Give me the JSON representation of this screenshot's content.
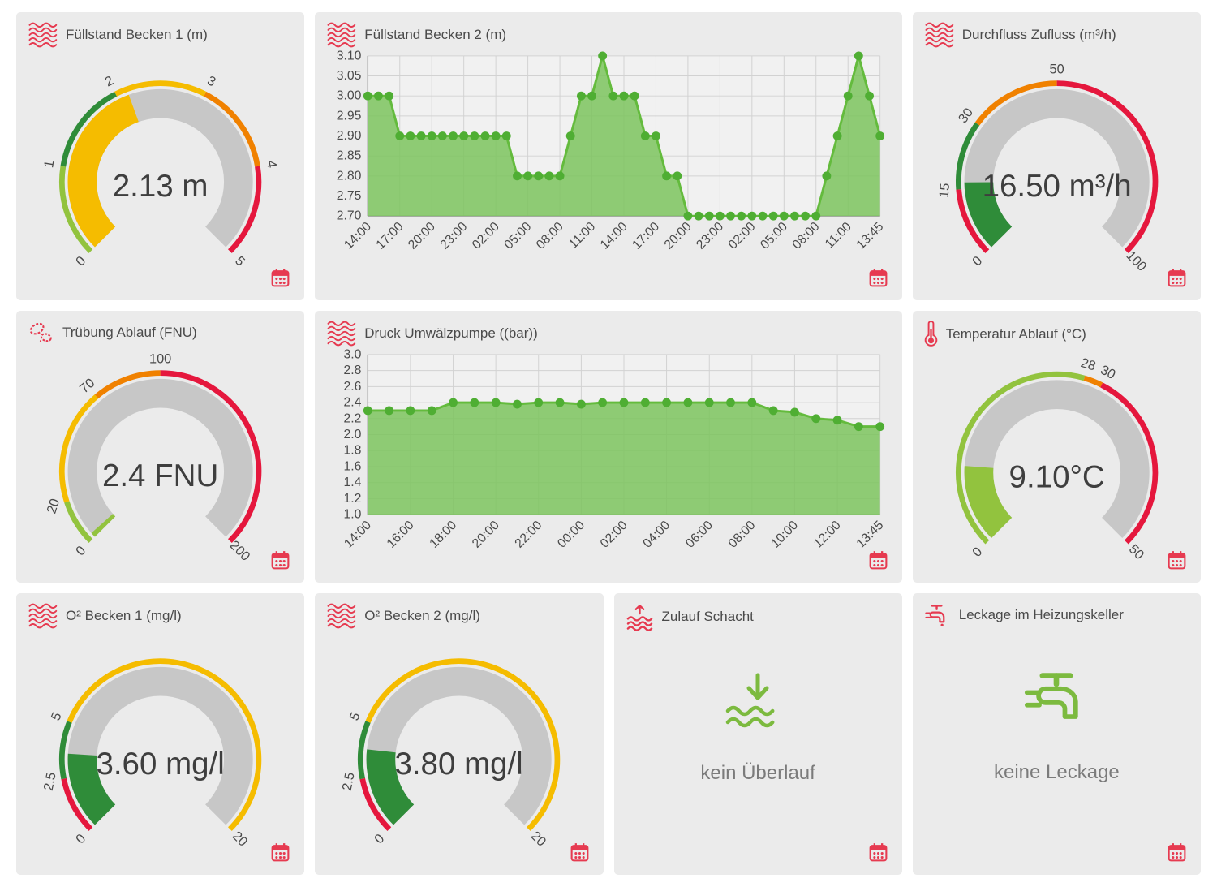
{
  "palette": {
    "page_bg": "#FFFFFF",
    "card_bg": "#EBEBEB",
    "icon_red": "#E63A50",
    "status_green": "#7CBA3F",
    "band_red": "#E5173D",
    "band_orange": "#F08100",
    "band_amber": "#F5BC00",
    "band_green": "#2F8C39",
    "band_light_green": "#92C33E",
    "gauge_track": "#C7C7C7",
    "gauge_value_text": "#3E3E3E",
    "tick_text": "#4A4A4A",
    "chart_fill": "#7CC45E",
    "chart_line": "#64BB3D",
    "chart_marker": "#4FAE33",
    "chart_grid": "#D2D2D2",
    "chart_axis": "#9E9E9E",
    "chart_plot_bg": "#F1F1F1"
  },
  "ui": {
    "calendar_icon": "calendar-icon"
  },
  "cards": [
    {
      "id": "fuellstand-becken-1",
      "type": "gauge",
      "title": "Füllstand Becken 1 (m)",
      "icon": "waves-icon",
      "gauge": {
        "value": 2.13,
        "value_label": "2.13 m",
        "min": 0,
        "max": 5,
        "tick_values": [
          0,
          1,
          2,
          3,
          4,
          5
        ],
        "tick_labels": [
          "0",
          "1",
          "2",
          "3",
          "4",
          "5"
        ],
        "bands": [
          {
            "from": 0,
            "to": 1,
            "color": "#92C33E"
          },
          {
            "from": 1,
            "to": 2,
            "color": "#2F8C39"
          },
          {
            "from": 2,
            "to": 3,
            "color": "#F5BC00"
          },
          {
            "from": 3,
            "to": 4,
            "color": "#F08100"
          },
          {
            "from": 4,
            "to": 5,
            "color": "#E5173D"
          }
        ],
        "fill_color": "#F5BC00"
      }
    },
    {
      "id": "fuellstand-becken-2",
      "type": "chart",
      "title": "Füllstand Becken 2 (m)",
      "icon": "waves-icon",
      "chart_index": 0
    },
    {
      "id": "durchfluss-zufluss",
      "type": "gauge",
      "title": "Durchfluss Zufluss (m³/h)",
      "icon": "waves-icon",
      "gauge": {
        "value": 16.5,
        "value_label": "16.50 m³/h",
        "min": 0,
        "max": 100,
        "tick_values": [
          0,
          15,
          30,
          50,
          100
        ],
        "tick_labels": [
          "0",
          "15",
          "30",
          "50",
          "100"
        ],
        "bands": [
          {
            "from": 0,
            "to": 15,
            "color": "#E5173D"
          },
          {
            "from": 15,
            "to": 30,
            "color": "#2F8C39"
          },
          {
            "from": 30,
            "to": 50,
            "color": "#F08100"
          },
          {
            "from": 50,
            "to": 100,
            "color": "#E5173D"
          }
        ],
        "fill_color": "#2F8C39"
      }
    },
    {
      "id": "truebung-ablauf",
      "type": "gauge",
      "title": "Trübung Ablauf (FNU)",
      "icon": "bacteria-icon",
      "gauge": {
        "value": 2.4,
        "value_label": "2.4 FNU",
        "min": 0,
        "max": 200,
        "tick_values": [
          0,
          20,
          70,
          100,
          200
        ],
        "tick_labels": [
          "0",
          "20",
          "70",
          "100",
          "200"
        ],
        "bands": [
          {
            "from": 0,
            "to": 20,
            "color": "#92C33E"
          },
          {
            "from": 20,
            "to": 70,
            "color": "#F5BC00"
          },
          {
            "from": 70,
            "to": 100,
            "color": "#F08100"
          },
          {
            "from": 100,
            "to": 200,
            "color": "#E5173D"
          }
        ],
        "fill_color": "#92C33E"
      }
    },
    {
      "id": "druck-umwaelzpumpe",
      "type": "chart",
      "title": "Druck Umwälzpumpe ((bar))",
      "icon": "waves-icon",
      "chart_index": 1
    },
    {
      "id": "temperatur-ablauf",
      "type": "gauge",
      "title": "Temperatur Ablauf (°C)",
      "icon": "thermometer-icon",
      "gauge": {
        "value": 9.1,
        "value_label": "9.10°C",
        "min": 0,
        "max": 50,
        "tick_values": [
          0,
          28,
          30,
          50
        ],
        "tick_labels": [
          "0",
          "28",
          "30",
          "50"
        ],
        "bands": [
          {
            "from": 0,
            "to": 28,
            "color": "#92C33E"
          },
          {
            "from": 28,
            "to": 30,
            "color": "#F08100"
          },
          {
            "from": 30,
            "to": 50,
            "color": "#E5173D"
          }
        ],
        "fill_color": "#92C33E"
      }
    },
    {
      "id": "o2-becken-1",
      "type": "gauge",
      "title": "O² Becken 1 (mg/l)",
      "icon": "waves-icon",
      "gauge": {
        "value": 3.6,
        "value_label": "3.60 mg/l",
        "min": 0,
        "max": 20,
        "tick_values": [
          0,
          2.5,
          5,
          20
        ],
        "tick_labels": [
          "0",
          "2.5",
          "5",
          "20"
        ],
        "bands": [
          {
            "from": 0,
            "to": 2.5,
            "color": "#E5173D"
          },
          {
            "from": 2.5,
            "to": 5,
            "color": "#2F8C39"
          },
          {
            "from": 5,
            "to": 20,
            "color": "#F5BC00"
          }
        ],
        "fill_color": "#2F8C39"
      }
    },
    {
      "id": "o2-becken-2",
      "type": "gauge",
      "title": "O² Becken 2 (mg/l)",
      "icon": "waves-icon",
      "gauge": {
        "value": 3.8,
        "value_label": "3.80 mg/l",
        "min": 0,
        "max": 20,
        "tick_values": [
          0,
          2.5,
          5,
          20
        ],
        "tick_labels": [
          "0",
          "2.5",
          "5",
          "20"
        ],
        "bands": [
          {
            "from": 0,
            "to": 2.5,
            "color": "#E5173D"
          },
          {
            "from": 2.5,
            "to": 5,
            "color": "#2F8C39"
          },
          {
            "from": 5,
            "to": 20,
            "color": "#F5BC00"
          }
        ],
        "fill_color": "#2F8C39"
      }
    },
    {
      "id": "zulauf-schacht",
      "type": "status",
      "title": "Zulauf Schacht",
      "icon": "overflow-alert-icon",
      "center_icon": "water-inflow-icon",
      "status_text": "kein Überlauf"
    },
    {
      "id": "leckage-heizungskeller",
      "type": "status",
      "title": "Leckage im Heizungskeller",
      "icon": "leaking-faucet-icon",
      "center_icon": "faucet-icon",
      "status_text": "keine Leckage"
    }
  ],
  "chart_data": [
    {
      "type": "area",
      "title": "Füllstand Becken 2 (m)",
      "ylabel": "m",
      "ylim": [
        2.7,
        3.1
      ],
      "y_step": 0.05,
      "y_tick_labels": [
        "2.70",
        "2.75",
        "2.80",
        "2.85",
        "2.90",
        "2.95",
        "3.00",
        "3.05",
        "3.10"
      ],
      "x_tick_labels": [
        "14:00",
        "17:00",
        "20:00",
        "23:00",
        "02:00",
        "05:00",
        "08:00",
        "11:00",
        "14:00",
        "17:00",
        "20:00",
        "23:00",
        "02:00",
        "05:00",
        "08:00",
        "11:00",
        "13:45"
      ],
      "tick_every": 3,
      "x_tick_rotation": -45,
      "grid": true,
      "legend": false,
      "values": [
        3.0,
        3.0,
        3.0,
        2.9,
        2.9,
        2.9,
        2.9,
        2.9,
        2.9,
        2.9,
        2.9,
        2.9,
        2.9,
        2.9,
        2.8,
        2.8,
        2.8,
        2.8,
        2.8,
        2.9,
        3.0,
        3.0,
        3.1,
        3.0,
        3.0,
        3.0,
        2.9,
        2.9,
        2.8,
        2.8,
        2.7,
        2.7,
        2.7,
        2.7,
        2.7,
        2.7,
        2.7,
        2.7,
        2.7,
        2.7,
        2.7,
        2.7,
        2.7,
        2.8,
        2.9,
        3.0,
        3.1,
        3.0,
        2.9
      ]
    },
    {
      "type": "area",
      "title": "Druck Umwälzpumpe ((bar))",
      "ylabel": "bar",
      "ylim": [
        1.0,
        3.0
      ],
      "y_step": 0.2,
      "y_tick_labels": [
        "1.0",
        "1.2",
        "1.4",
        "1.6",
        "1.8",
        "2.0",
        "2.2",
        "2.4",
        "2.6",
        "2.8",
        "3.0"
      ],
      "x_tick_labels": [
        "14:00",
        "16:00",
        "18:00",
        "20:00",
        "22:00",
        "00:00",
        "02:00",
        "04:00",
        "06:00",
        "08:00",
        "10:00",
        "12:00",
        "13:45"
      ],
      "tick_every": 2,
      "x_tick_rotation": -45,
      "grid": true,
      "legend": false,
      "values": [
        2.3,
        2.3,
        2.3,
        2.3,
        2.4,
        2.4,
        2.4,
        2.38,
        2.4,
        2.4,
        2.38,
        2.4,
        2.4,
        2.4,
        2.4,
        2.4,
        2.4,
        2.4,
        2.4,
        2.3,
        2.28,
        2.2,
        2.18,
        2.1,
        2.1
      ]
    }
  ]
}
